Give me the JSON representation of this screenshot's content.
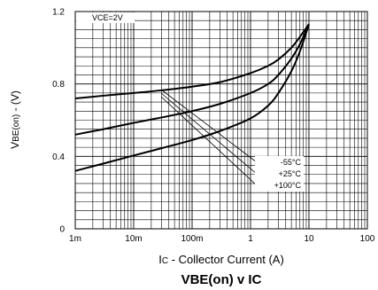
{
  "chart_data": {
    "type": "line",
    "title_main": "VBE(on)",
    "title_mid": " v ",
    "title_tail": "IC",
    "xlabel_prefix": "I",
    "xlabel_sub": "C",
    "xlabel_rest": " - Collector Current (A)",
    "ylabel_prefix": "V",
    "ylabel_sub": "BE(on)",
    "ylabel_rest": " - (V)",
    "condition": "VCE=2V",
    "x_scale": "log",
    "xlim": [
      0.001,
      100
    ],
    "ylim": [
      0,
      1.2
    ],
    "x_ticks": [
      {
        "value": 0.001,
        "label": "1m"
      },
      {
        "value": 0.01,
        "label": "10m"
      },
      {
        "value": 0.1,
        "label": "100m"
      },
      {
        "value": 1,
        "label": "1"
      },
      {
        "value": 10,
        "label": "10"
      },
      {
        "value": 100,
        "label": "100"
      }
    ],
    "y_ticks": [
      {
        "value": 0,
        "label": "0"
      },
      {
        "value": 0.4,
        "label": "0.4"
      },
      {
        "value": 0.8,
        "label": "0.8"
      },
      {
        "value": 1.2,
        "label": "1.2"
      }
    ],
    "grid": true,
    "series": [
      {
        "name": "-55°C",
        "x": [
          0.001,
          0.003,
          0.01,
          0.03,
          0.1,
          0.3,
          1,
          2,
          3,
          5,
          7,
          10
        ],
        "y": [
          0.72,
          0.735,
          0.75,
          0.765,
          0.785,
          0.81,
          0.86,
          0.9,
          0.935,
          1.0,
          1.06,
          1.13
        ]
      },
      {
        "name": "+25°C",
        "x": [
          0.001,
          0.003,
          0.01,
          0.03,
          0.1,
          0.3,
          1,
          2,
          3,
          5,
          7,
          10
        ],
        "y": [
          0.52,
          0.55,
          0.585,
          0.615,
          0.65,
          0.69,
          0.75,
          0.8,
          0.85,
          0.94,
          1.02,
          1.13
        ]
      },
      {
        "name": "+100°C",
        "x": [
          0.001,
          0.003,
          0.01,
          0.03,
          0.1,
          0.3,
          1,
          2,
          3,
          5,
          7,
          10
        ],
        "y": [
          0.32,
          0.36,
          0.405,
          0.445,
          0.49,
          0.54,
          0.61,
          0.68,
          0.75,
          0.87,
          0.98,
          1.13
        ]
      }
    ],
    "legend_placement": "lower-right"
  }
}
